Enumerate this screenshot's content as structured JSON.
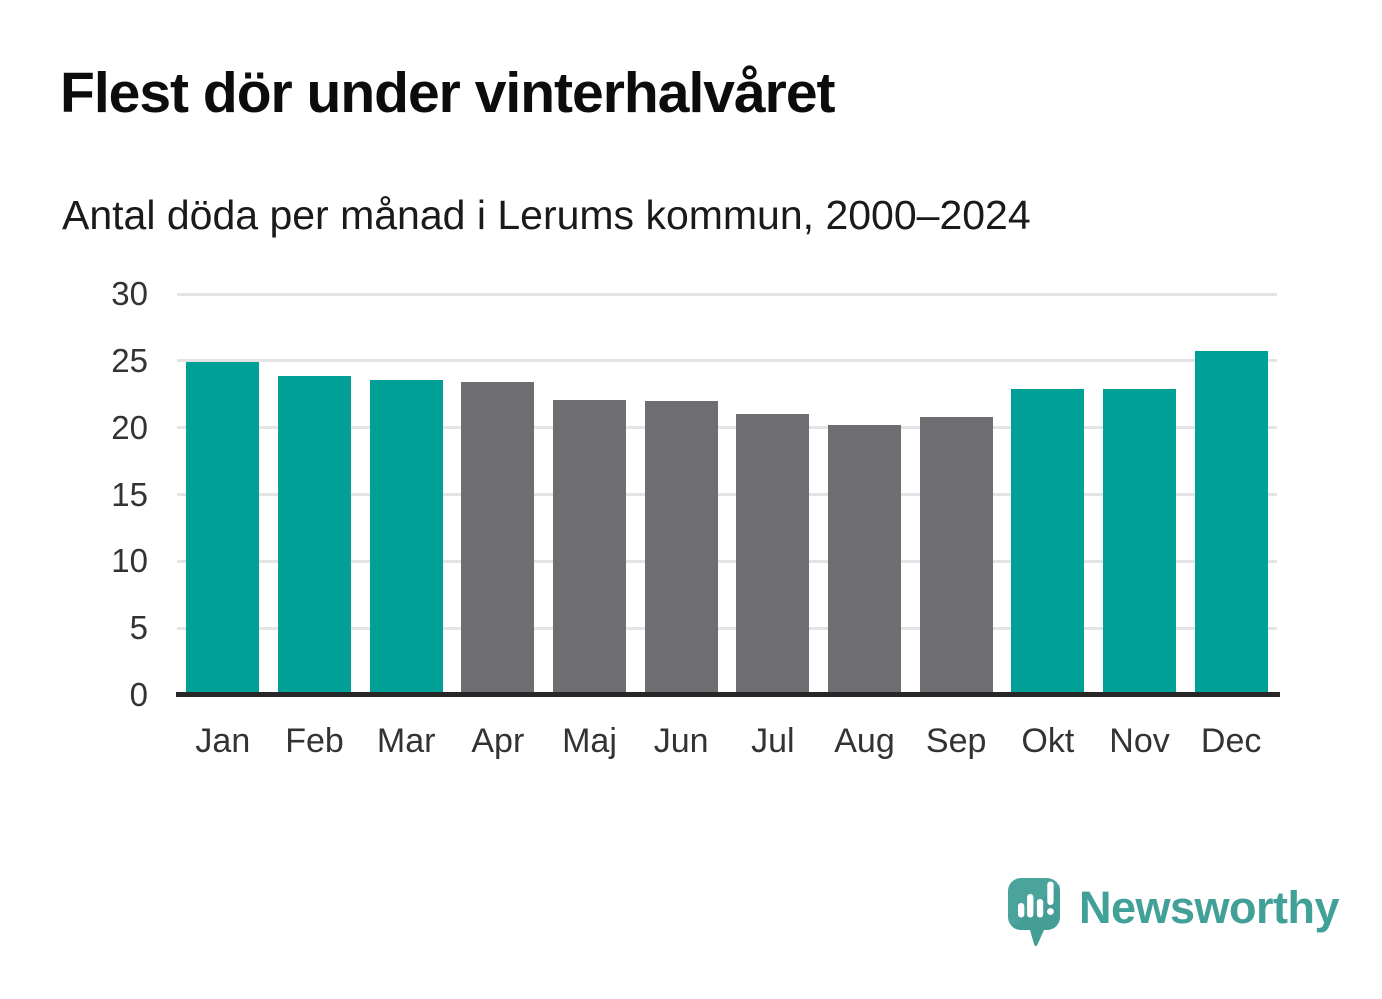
{
  "title": "Flest dör under vinterhalvåret",
  "subtitle": "Antal döda per månad i Lerums kommun, 2000–2024",
  "branding": {
    "wordmark": "Newsworthy",
    "logo_icon": "newsworthy-speech-bubble-chart-icon",
    "brand_color": "#41a098",
    "logo_dark_shade": "#3b948c",
    "logo_glyph_color": "#ffffff"
  },
  "colors": {
    "winter_bar": "#00a096",
    "summer_bar": "#6e6e72",
    "gridline": "#e4e4e4",
    "axis_line": "#272727",
    "tick_text": "#333333"
  },
  "chart_data": {
    "type": "bar",
    "title": "Flest dör under vinterhalvåret",
    "subtitle": "Antal döda per månad i Lerums kommun, 2000–2024",
    "categories": [
      "Jan",
      "Feb",
      "Mar",
      "Apr",
      "Maj",
      "Jun",
      "Jul",
      "Aug",
      "Sep",
      "Okt",
      "Nov",
      "Dec"
    ],
    "values": [
      24.9,
      23.9,
      23.6,
      23.4,
      22.1,
      22.0,
      21.0,
      20.2,
      20.8,
      22.9,
      22.9,
      25.7
    ],
    "bar_colors": [
      "#00a096",
      "#00a096",
      "#00a096",
      "#6e6e72",
      "#6e6e72",
      "#6e6e72",
      "#6e6e72",
      "#6e6e72",
      "#6e6e72",
      "#00a096",
      "#00a096",
      "#00a096"
    ],
    "color_meaning": "teal = winter half-year months (Okt–Mar), gray = summer half-year months (Apr–Sep)",
    "xlabel": "",
    "ylabel": "",
    "ylim": [
      0,
      30
    ],
    "yticks": [
      0,
      5,
      10,
      15,
      20,
      25,
      30
    ],
    "grid": true,
    "legend": false
  }
}
